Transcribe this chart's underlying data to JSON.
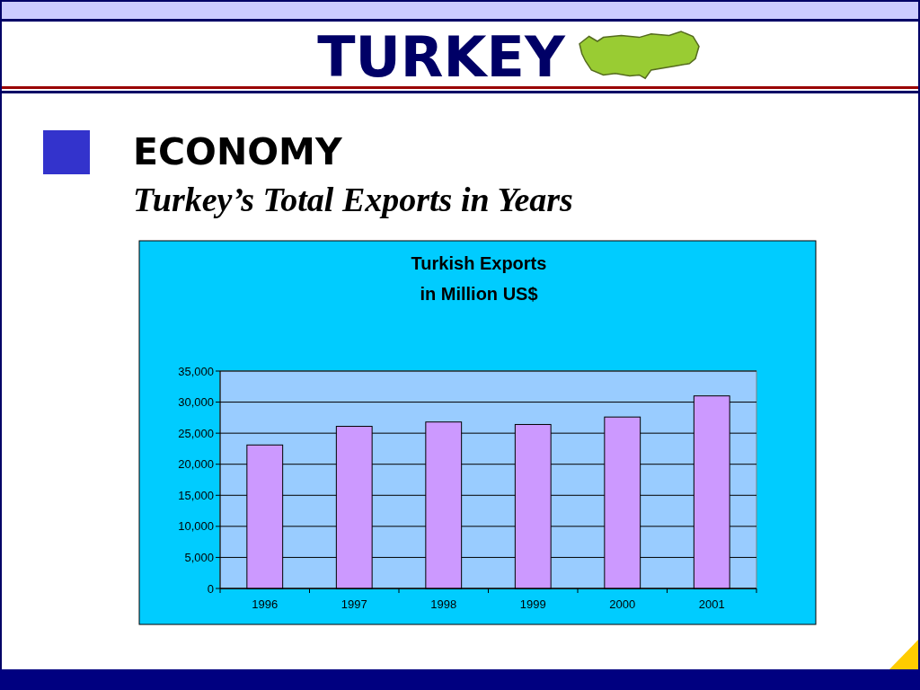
{
  "chart_data": {
    "type": "bar",
    "title": "Turkish Exports\nin Million US$",
    "annotations": [
      "TURKEY",
      "ECONOMY",
      "Turkey’s Total Exports in Years"
    ],
    "categories": [
      "1996",
      "1997",
      "1998",
      "1999",
      "2000",
      "2001"
    ],
    "values": [
      23100,
      26100,
      26800,
      26400,
      27600,
      31000
    ],
    "color": "#cc99ff",
    "ylim": [
      0,
      35000
    ],
    "yticks": [
      0,
      {
        "value": 5000,
        "label": "5,000"
      },
      {
        "value": 10000,
        "label": "10,000"
      },
      {
        "value": 15000,
        "label": "15,000"
      },
      {
        "value": 20000,
        "label": "20,000"
      },
      {
        "value": 25000,
        "label": "25,000"
      },
      {
        "value": 30000,
        "label": "30,000"
      },
      {
        "value": 35000,
        "label": "35,000"
      }
    ],
    "grid": "y"
  }
}
